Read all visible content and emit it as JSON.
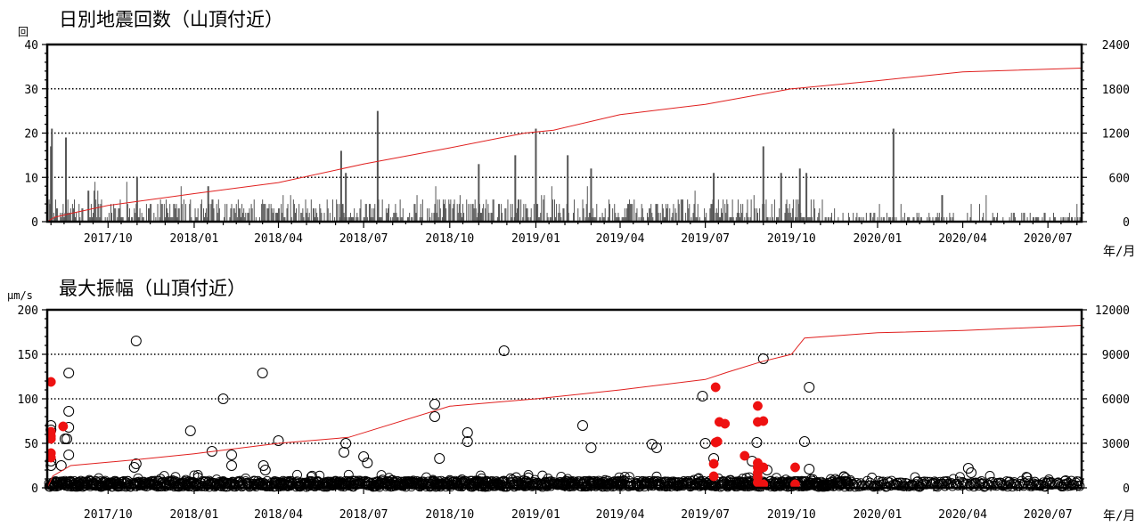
{
  "chart_data": [
    {
      "type": "bar",
      "title": "日別地震回数（山頂付近）",
      "ylabel": "回",
      "xlabel": "年/月",
      "ylim": [
        0,
        40
      ],
      "y_ticks": [
        "0",
        "10",
        "20",
        "30",
        "40"
      ],
      "y2lim": [
        0,
        2400
      ],
      "y2_ticks": [
        "0",
        "600",
        "1200",
        "1800",
        "2400"
      ],
      "x_range": [
        "2017-07-28",
        "2020-08-06"
      ],
      "x_ticks": [
        "2017/10",
        "2018/01",
        "2018/04",
        "2018/07",
        "2018/10",
        "2019/01",
        "2019/04",
        "2019/07",
        "2019/10",
        "2020/01",
        "2020/04",
        "2020/07"
      ],
      "grid": "horizontal dotted",
      "bar_color": "#555555",
      "cumulative_color": "#e0201f",
      "peaks": [
        {
          "date": "2017-08-02",
          "value": 21
        },
        {
          "date": "2017-08-01",
          "value": 17
        },
        {
          "date": "2017-08-17",
          "value": 19
        },
        {
          "date": "2017-09-10",
          "value": 7
        },
        {
          "date": "2017-11-01",
          "value": 10
        },
        {
          "date": "2018-01-16",
          "value": 8
        },
        {
          "date": "2018-06-07",
          "value": 16
        },
        {
          "date": "2018-06-12",
          "value": 11
        },
        {
          "date": "2018-07-16",
          "value": 25
        },
        {
          "date": "2018-11-01",
          "value": 13
        },
        {
          "date": "2018-12-10",
          "value": 15
        },
        {
          "date": "2019-01-01",
          "value": 21
        },
        {
          "date": "2019-02-04",
          "value": 15
        },
        {
          "date": "2019-03-01",
          "value": 12
        },
        {
          "date": "2019-07-10",
          "value": 11
        },
        {
          "date": "2019-09-01",
          "value": 17
        },
        {
          "date": "2019-09-20",
          "value": 11
        },
        {
          "date": "2019-10-10",
          "value": 12
        },
        {
          "date": "2019-10-17",
          "value": 11
        },
        {
          "date": "2020-01-18",
          "value": 21
        },
        {
          "date": "2020-03-10",
          "value": 6
        }
      ],
      "cumulative": [
        {
          "date": "2017-07-28",
          "value": 0
        },
        {
          "date": "2017-08-05",
          "value": 60
        },
        {
          "date": "2017-08-25",
          "value": 120
        },
        {
          "date": "2017-10-01",
          "value": 220
        },
        {
          "date": "2018-01-01",
          "value": 380
        },
        {
          "date": "2018-04-01",
          "value": 530
        },
        {
          "date": "2018-07-01",
          "value": 780
        },
        {
          "date": "2018-10-01",
          "value": 1000
        },
        {
          "date": "2018-12-20",
          "value": 1200
        },
        {
          "date": "2019-01-20",
          "value": 1240
        },
        {
          "date": "2019-04-01",
          "value": 1450
        },
        {
          "date": "2019-07-01",
          "value": 1590
        },
        {
          "date": "2019-10-01",
          "value": 1800
        },
        {
          "date": "2020-01-01",
          "value": 1910
        },
        {
          "date": "2020-04-01",
          "value": 2030
        },
        {
          "date": "2020-08-06",
          "value": 2080
        }
      ]
    },
    {
      "type": "scatter",
      "title": "最大振幅（山頂付近）",
      "ylabel": "μm/s",
      "xlabel": "年/月",
      "ylim": [
        0,
        200
      ],
      "y_ticks": [
        "0",
        "50",
        "100",
        "150",
        "200"
      ],
      "y2lim": [
        0,
        12000
      ],
      "y2_ticks": [
        "0",
        "3000",
        "6000",
        "9000",
        "12000"
      ],
      "x_range": [
        "2017-07-28",
        "2020-08-06"
      ],
      "x_ticks": [
        "2017/10",
        "2018/01",
        "2018/04",
        "2018/07",
        "2018/10",
        "2019/01",
        "2019/04",
        "2019/07",
        "2019/10",
        "2020/01",
        "2020/04",
        "2020/07"
      ],
      "grid": "horizontal dotted",
      "cumulative_color": "#e0201f",
      "series": [
        {
          "marker": "open circle",
          "color": "#000000",
          "points": [
            {
              "x": "2017-08-01",
              "y": 65
            },
            {
              "x": "2017-08-01",
              "y": 70
            },
            {
              "x": "2017-08-01",
              "y": 30
            },
            {
              "x": "2017-08-01",
              "y": 25
            },
            {
              "x": "2017-08-12",
              "y": 25
            },
            {
              "x": "2017-08-16",
              "y": 55
            },
            {
              "x": "2017-08-18",
              "y": 55
            },
            {
              "x": "2017-08-20",
              "y": 129
            },
            {
              "x": "2017-08-20",
              "y": 86
            },
            {
              "x": "2017-08-20",
              "y": 68
            },
            {
              "x": "2017-08-20",
              "y": 37
            },
            {
              "x": "2017-10-31",
              "y": 165
            },
            {
              "x": "2017-10-31",
              "y": 27
            },
            {
              "x": "2017-10-29",
              "y": 23
            },
            {
              "x": "2017-12-28",
              "y": 64
            },
            {
              "x": "2018-01-20",
              "y": 41
            },
            {
              "x": "2018-02-01",
              "y": 100
            },
            {
              "x": "2018-02-10",
              "y": 37
            },
            {
              "x": "2018-02-10",
              "y": 25
            },
            {
              "x": "2018-03-15",
              "y": 129
            },
            {
              "x": "2018-03-16",
              "y": 25
            },
            {
              "x": "2018-03-18",
              "y": 20
            },
            {
              "x": "2018-04-01",
              "y": 53
            },
            {
              "x": "2018-06-12",
              "y": 50
            },
            {
              "x": "2018-06-10",
              "y": 40
            },
            {
              "x": "2018-07-01",
              "y": 35
            },
            {
              "x": "2018-07-05",
              "y": 28
            },
            {
              "x": "2018-09-15",
              "y": 94
            },
            {
              "x": "2018-09-15",
              "y": 80
            },
            {
              "x": "2018-09-20",
              "y": 33
            },
            {
              "x": "2018-10-20",
              "y": 62
            },
            {
              "x": "2018-10-20",
              "y": 52
            },
            {
              "x": "2018-11-28",
              "y": 154
            },
            {
              "x": "2019-02-20",
              "y": 70
            },
            {
              "x": "2019-03-01",
              "y": 45
            },
            {
              "x": "2019-05-05",
              "y": 49
            },
            {
              "x": "2019-05-10",
              "y": 45
            },
            {
              "x": "2019-06-28",
              "y": 103
            },
            {
              "x": "2019-07-01",
              "y": 50
            },
            {
              "x": "2019-07-10",
              "y": 33
            },
            {
              "x": "2019-08-20",
              "y": 30
            },
            {
              "x": "2019-08-25",
              "y": 51
            },
            {
              "x": "2019-09-01",
              "y": 145
            },
            {
              "x": "2019-09-05",
              "y": 20
            },
            {
              "x": "2019-10-15",
              "y": 52
            },
            {
              "x": "2019-10-20",
              "y": 113
            },
            {
              "x": "2019-10-20",
              "y": 21
            },
            {
              "x": "2020-04-07",
              "y": 22
            },
            {
              "x": "2020-04-10",
              "y": 17
            },
            {
              "x": "2020-07-20",
              "y": 8
            }
          ]
        },
        {
          "marker": "filled circle",
          "color": "#ee1111",
          "points": [
            {
              "x": "2017-08-01",
              "y": 119
            },
            {
              "x": "2017-08-01",
              "y": 63
            },
            {
              "x": "2017-08-01",
              "y": 58
            },
            {
              "x": "2017-08-01",
              "y": 55
            },
            {
              "x": "2017-08-01",
              "y": 39
            },
            {
              "x": "2017-08-01",
              "y": 34
            },
            {
              "x": "2017-08-14",
              "y": 69
            },
            {
              "x": "2019-07-12",
              "y": 113
            },
            {
              "x": "2019-07-12",
              "y": 51
            },
            {
              "x": "2019-07-14",
              "y": 52
            },
            {
              "x": "2019-07-16",
              "y": 74
            },
            {
              "x": "2019-07-22",
              "y": 72
            },
            {
              "x": "2019-07-10",
              "y": 27
            },
            {
              "x": "2019-07-10",
              "y": 13
            },
            {
              "x": "2019-08-12",
              "y": 36
            },
            {
              "x": "2019-08-26",
              "y": 92
            },
            {
              "x": "2019-08-26",
              "y": 74
            },
            {
              "x": "2019-09-01",
              "y": 75
            },
            {
              "x": "2019-08-26",
              "y": 28
            },
            {
              "x": "2019-08-26",
              "y": 23
            },
            {
              "x": "2019-08-26",
              "y": 17
            },
            {
              "x": "2019-08-26",
              "y": 12
            },
            {
              "x": "2019-08-26",
              "y": 6
            },
            {
              "x": "2019-09-01",
              "y": 23
            },
            {
              "x": "2019-09-01",
              "y": 4
            },
            {
              "x": "2019-10-05",
              "y": 23
            },
            {
              "x": "2019-10-05",
              "y": 4
            }
          ]
        }
      ],
      "cumulative": [
        {
          "date": "2017-07-28",
          "value": 0
        },
        {
          "date": "2017-08-03",
          "value": 800
        },
        {
          "date": "2017-08-22",
          "value": 1500
        },
        {
          "date": "2017-11-01",
          "value": 1900
        },
        {
          "date": "2018-01-01",
          "value": 2300
        },
        {
          "date": "2018-04-01",
          "value": 3000
        },
        {
          "date": "2018-06-15",
          "value": 3400
        },
        {
          "date": "2018-10-01",
          "value": 5500
        },
        {
          "date": "2019-01-01",
          "value": 6000
        },
        {
          "date": "2019-04-01",
          "value": 6600
        },
        {
          "date": "2019-07-01",
          "value": 7300
        },
        {
          "date": "2019-07-25",
          "value": 7800
        },
        {
          "date": "2019-08-30",
          "value": 8500
        },
        {
          "date": "2019-10-01",
          "value": 9000
        },
        {
          "date": "2019-10-15",
          "value": 10100
        },
        {
          "date": "2020-01-01",
          "value": 10450
        },
        {
          "date": "2020-04-01",
          "value": 10600
        },
        {
          "date": "2020-08-06",
          "value": 10950
        }
      ]
    }
  ]
}
